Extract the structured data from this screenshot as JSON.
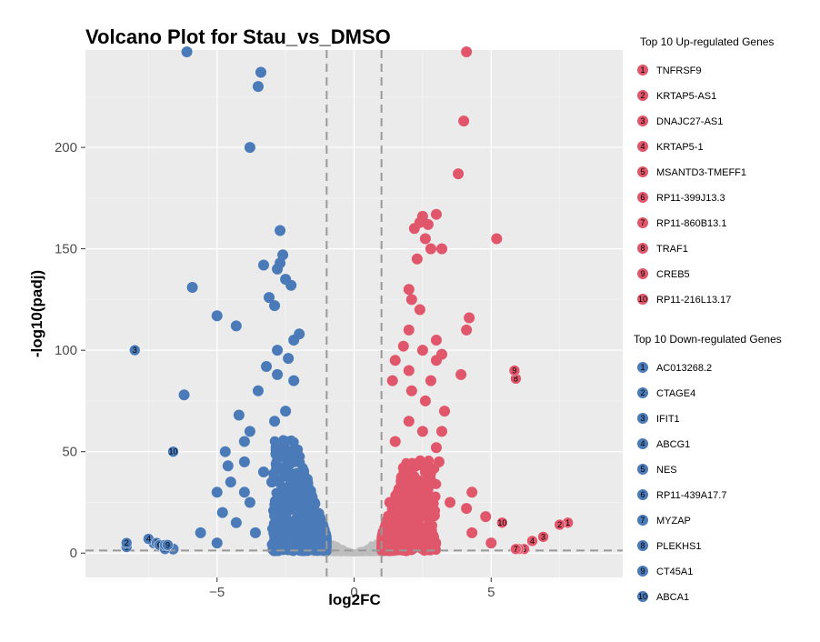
{
  "chart_data": {
    "type": "scatter",
    "title": "Volcano Plot for Stau_vs_DMSO",
    "xlabel": "log2FC",
    "ylabel": "-log10(padj)",
    "xlim": [
      -9.8,
      9.8
    ],
    "ylim": [
      -12,
      248
    ],
    "x_ticks": [
      -5,
      0,
      5
    ],
    "y_ticks": [
      0,
      50,
      100,
      150,
      200
    ],
    "grid": true,
    "thresholds": {
      "log2fc": [
        -1,
        1
      ],
      "padj_line": 1.3
    },
    "colors": {
      "up": "#e0566b",
      "down": "#4a7ab8",
      "ns": "#bdbdbd",
      "panel": "#ebebeb",
      "grid": "#ffffff",
      "threshold": "#999999"
    },
    "up_genes": {
      "title": "Top 10 Up-regulated Genes",
      "genes": [
        "TNFRSF9",
        "KRTAP5-AS1",
        "DNAJC27-AS1",
        "KRTAP5-1",
        "MSANTD3-TMEFF1",
        "RP11-399J13.3",
        "RP11-860B13.1",
        "TRAF1",
        "CREB5",
        "RP11-216L13.17"
      ],
      "points": [
        [
          7.8,
          15
        ],
        [
          7.5,
          14
        ],
        [
          6.9,
          8
        ],
        [
          6.5,
          6
        ],
        [
          6.2,
          2
        ],
        [
          6.0,
          2
        ],
        [
          5.9,
          2
        ],
        [
          5.9,
          86
        ],
        [
          5.85,
          90
        ],
        [
          5.4,
          15
        ]
      ]
    },
    "down_genes": {
      "title": "Top 10 Down-regulated Genes",
      "genes": [
        "AC013268.2",
        "CTAGE4",
        "IFIT1",
        "ABCG1",
        "NES",
        "RP11-439A17.7",
        "MYZAP",
        "PLEKHS1",
        "CT45A1",
        "ABCA1"
      ],
      "points": [
        [
          -8.3,
          3
        ],
        [
          -8.3,
          5
        ],
        [
          -8.0,
          100
        ],
        [
          -7.5,
          7
        ],
        [
          -7.2,
          5
        ],
        [
          -7.1,
          4
        ],
        [
          -6.9,
          2
        ],
        [
          -6.9,
          4
        ],
        [
          -6.8,
          4
        ],
        [
          -6.6,
          50
        ]
      ]
    },
    "scatter_up": [
      [
        4.1,
        250
      ],
      [
        4.0,
        213
      ],
      [
        3.8,
        187
      ],
      [
        3.0,
        167
      ],
      [
        2.5,
        166
      ],
      [
        2.4,
        163
      ],
      [
        2.7,
        162
      ],
      [
        2.2,
        160
      ],
      [
        2.6,
        155
      ],
      [
        2.8,
        150
      ],
      [
        3.2,
        150
      ],
      [
        5.2,
        155
      ],
      [
        2.3,
        145
      ],
      [
        2.0,
        130
      ],
      [
        2.1,
        125
      ],
      [
        2.4,
        120
      ],
      [
        4.2,
        116
      ],
      [
        4.1,
        110
      ],
      [
        2.0,
        110
      ],
      [
        3.0,
        105
      ],
      [
        2.5,
        100
      ],
      [
        1.8,
        102
      ],
      [
        3.2,
        98
      ],
      [
        3.0,
        95
      ],
      [
        3.9,
        88
      ],
      [
        2.0,
        90
      ],
      [
        1.5,
        95
      ],
      [
        2.8,
        85
      ],
      [
        2.1,
        80
      ],
      [
        1.4,
        85
      ],
      [
        2.6,
        75
      ],
      [
        3.3,
        70
      ],
      [
        3.2,
        60
      ],
      [
        2.5,
        60
      ],
      [
        2.0,
        65
      ],
      [
        3.0,
        52
      ],
      [
        1.5,
        55
      ],
      [
        4.3,
        30
      ],
      [
        4.1,
        22
      ],
      [
        4.8,
        18
      ],
      [
        5.0,
        5
      ],
      [
        4.3,
        10
      ],
      [
        3.5,
        25
      ],
      [
        1.8,
        42
      ],
      [
        2.2,
        35
      ],
      [
        1.6,
        30
      ],
      [
        1.3,
        25
      ],
      [
        2.6,
        40
      ],
      [
        3.1,
        45
      ]
    ],
    "scatter_down": [
      [
        -6.1,
        248
      ],
      [
        -3.4,
        237
      ],
      [
        -3.5,
        230
      ],
      [
        -3.8,
        200
      ],
      [
        -2.7,
        159
      ],
      [
        -2.6,
        147
      ],
      [
        -2.7,
        143
      ],
      [
        -3.3,
        142
      ],
      [
        -2.8,
        140
      ],
      [
        -2.5,
        135
      ],
      [
        -2.3,
        132
      ],
      [
        -5.9,
        131
      ],
      [
        -3.1,
        126
      ],
      [
        -2.9,
        122
      ],
      [
        -5.0,
        117
      ],
      [
        -4.3,
        112
      ],
      [
        -2.0,
        108
      ],
      [
        -2.2,
        105
      ],
      [
        -2.8,
        100
      ],
      [
        -2.4,
        96
      ],
      [
        -3.2,
        92
      ],
      [
        -2.8,
        88
      ],
      [
        -2.2,
        85
      ],
      [
        -3.5,
        80
      ],
      [
        -6.2,
        78
      ],
      [
        -2.5,
        70
      ],
      [
        -2.9,
        65
      ],
      [
        -4.2,
        68
      ],
      [
        -3.8,
        60
      ],
      [
        -2.5,
        55
      ],
      [
        -4.0,
        55
      ],
      [
        -4.7,
        50
      ],
      [
        -4.0,
        45
      ],
      [
        -4.6,
        43
      ],
      [
        -3.3,
        40
      ],
      [
        -5.0,
        30
      ],
      [
        -4.5,
        35
      ],
      [
        -4.0,
        30
      ],
      [
        -3.0,
        35
      ],
      [
        -3.8,
        25
      ],
      [
        -5.6,
        10
      ],
      [
        -5.0,
        5
      ],
      [
        -4.8,
        20
      ],
      [
        -4.3,
        15
      ],
      [
        -3.6,
        10
      ],
      [
        -6.6,
        2
      ],
      [
        -6.9,
        3
      ],
      [
        -7.3,
        5
      ]
    ],
    "ns_range": {
      "x": [
        -1.5,
        1.5
      ],
      "y": [
        0,
        10
      ]
    },
    "dense_up": {
      "x": [
        1.0,
        3.0
      ],
      "y": [
        1,
        45
      ]
    },
    "dense_down": {
      "x": [
        -3.0,
        -1.0
      ],
      "y": [
        1,
        55
      ]
    }
  }
}
